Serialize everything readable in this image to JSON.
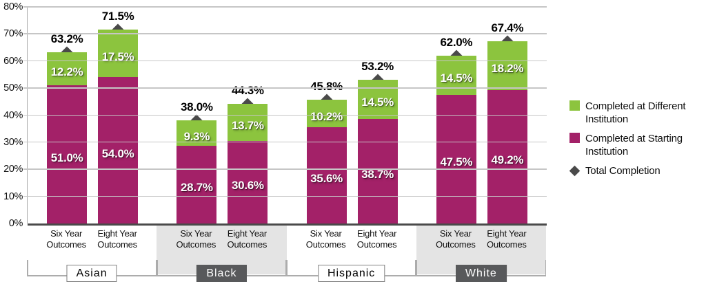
{
  "chart_data": {
    "type": "bar",
    "stacked": true,
    "title": "",
    "xlabel": "",
    "ylabel": "",
    "ylim": [
      0,
      80
    ],
    "ytick_step": 10,
    "ytick_labels": [
      "0%",
      "10%",
      "20%",
      "30%",
      "40%",
      "50%",
      "60%",
      "70%",
      "80%"
    ],
    "grid": true,
    "legend_position": "right",
    "groups": [
      {
        "category": "Asian",
        "shaded": false,
        "bars": [
          {
            "label": "Six Year Outcomes",
            "completed_at_starting": 51.0,
            "completed_at_different": 12.2,
            "total_completion": 63.2
          },
          {
            "label": "Eight Year Outcomes",
            "completed_at_starting": 54.0,
            "completed_at_different": 17.5,
            "total_completion": 71.5
          }
        ]
      },
      {
        "category": "Black",
        "shaded": true,
        "bars": [
          {
            "label": "Six Year Outcomes",
            "completed_at_starting": 28.7,
            "completed_at_different": 9.3,
            "total_completion": 38.0
          },
          {
            "label": "Eight Year Outcomes",
            "completed_at_starting": 30.6,
            "completed_at_different": 13.7,
            "total_completion": 44.3
          }
        ]
      },
      {
        "category": "Hispanic",
        "shaded": false,
        "bars": [
          {
            "label": "Six Year Outcomes",
            "completed_at_starting": 35.6,
            "completed_at_different": 10.2,
            "total_completion": 45.8
          },
          {
            "label": "Eight Year Outcomes",
            "completed_at_starting": 38.7,
            "completed_at_different": 14.5,
            "total_completion": 53.2
          }
        ]
      },
      {
        "category": "White",
        "shaded": true,
        "bars": [
          {
            "label": "Six Year Outcomes",
            "completed_at_starting": 47.5,
            "completed_at_different": 14.5,
            "total_completion": 62.0
          },
          {
            "label": "Eight Year Outcomes",
            "completed_at_starting": 49.2,
            "completed_at_different": 18.2,
            "total_completion": 67.4
          }
        ]
      }
    ],
    "legend": [
      {
        "shape": "square",
        "color": "#8CC43E",
        "label": "Completed at Different Institution"
      },
      {
        "shape": "square",
        "color": "#A32168",
        "label": "Completed at Starting Institution"
      },
      {
        "shape": "diamond",
        "color": "#4A4A4A",
        "label": "Total Completion"
      }
    ],
    "colors": {
      "completed_at_different": "#8CC43E",
      "completed_at_starting": "#A32168",
      "total_marker": "#4A4A4A",
      "shaded_band": "#E4E4E4"
    }
  }
}
